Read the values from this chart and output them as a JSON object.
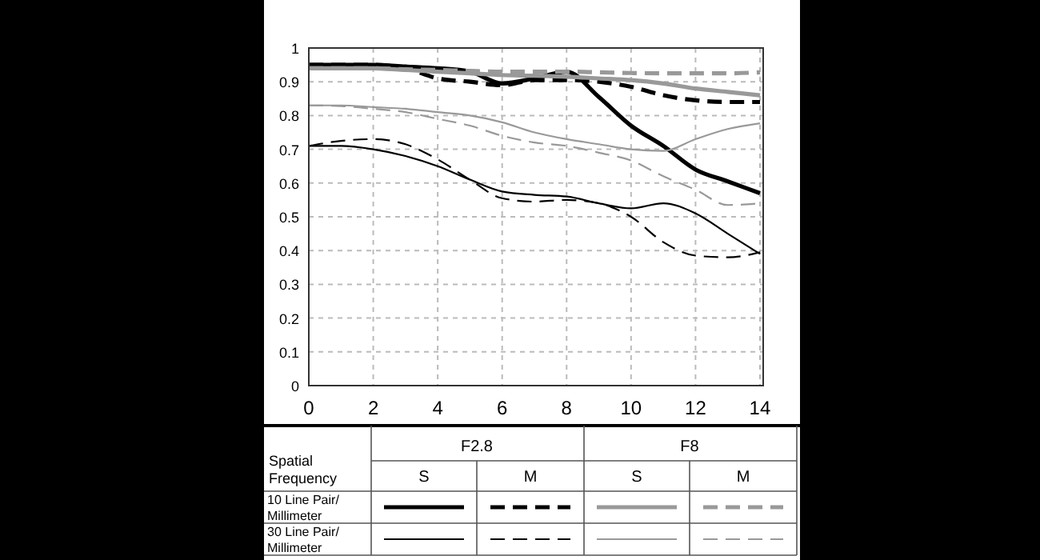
{
  "chart_data": {
    "type": "line",
    "xlim": [
      0,
      14.1
    ],
    "ylim": [
      0,
      1
    ],
    "xticks": [
      0,
      2,
      4,
      6,
      8,
      10,
      12,
      14
    ],
    "yticks": [
      0,
      0.1,
      0.2,
      0.3,
      0.4,
      0.5,
      0.6,
      0.7,
      0.8,
      0.9,
      1
    ],
    "grid": true,
    "annotations": [
      "Spatial Frequency",
      "F2.8",
      "F8",
      "S",
      "M",
      "S",
      "M",
      "10 Line Pair/ Millimeter",
      "30 Line Pair/ Millimeter"
    ],
    "x": [
      0,
      1,
      2,
      3,
      4,
      5,
      6,
      7,
      8,
      9,
      10,
      11,
      12,
      13,
      14
    ],
    "series": [
      {
        "color": "#000000",
        "line_style": "solid",
        "values": [
          0.95,
          0.95,
          0.95,
          0.945,
          0.94,
          0.93,
          0.895,
          0.91,
          0.93,
          0.855,
          0.77,
          0.71,
          0.64,
          0.605,
          0.57
        ]
      },
      {
        "color": "#000000",
        "line_style": "dashed",
        "values": [
          0.95,
          0.95,
          0.95,
          0.94,
          0.91,
          0.9,
          0.89,
          0.905,
          0.905,
          0.9,
          0.885,
          0.86,
          0.845,
          0.84,
          0.84
        ]
      },
      {
        "color": "#999999",
        "line_style": "solid",
        "values": [
          0.94,
          0.94,
          0.94,
          0.935,
          0.93,
          0.925,
          0.92,
          0.918,
          0.915,
          0.91,
          0.905,
          0.895,
          0.88,
          0.87,
          0.86
        ]
      },
      {
        "color": "#999999",
        "line_style": "dashed",
        "values": [
          0.94,
          0.94,
          0.94,
          0.937,
          0.935,
          0.932,
          0.93,
          0.93,
          0.93,
          0.928,
          0.926,
          0.925,
          0.925,
          0.925,
          0.928
        ]
      },
      {
        "color": "#000000",
        "line_style": "solid",
        "values": [
          0.71,
          0.71,
          0.7,
          0.68,
          0.65,
          0.61,
          0.575,
          0.565,
          0.56,
          0.54,
          0.525,
          0.54,
          0.51,
          0.45,
          0.39
        ]
      },
      {
        "color": "#000000",
        "line_style": "dashed",
        "values": [
          0.71,
          0.725,
          0.73,
          0.715,
          0.67,
          0.61,
          0.555,
          0.545,
          0.55,
          0.54,
          0.5,
          0.425,
          0.385,
          0.38,
          0.395
        ]
      },
      {
        "color": "#999999",
        "line_style": "solid",
        "values": [
          0.83,
          0.83,
          0.825,
          0.82,
          0.81,
          0.8,
          0.78,
          0.75,
          0.73,
          0.715,
          0.7,
          0.695,
          0.73,
          0.76,
          0.777
        ]
      },
      {
        "color": "#999999",
        "line_style": "dashed",
        "values": [
          0.83,
          0.828,
          0.82,
          0.81,
          0.79,
          0.77,
          0.74,
          0.72,
          0.71,
          0.69,
          0.667,
          0.62,
          0.58,
          0.535,
          0.54
        ]
      }
    ]
  }
}
